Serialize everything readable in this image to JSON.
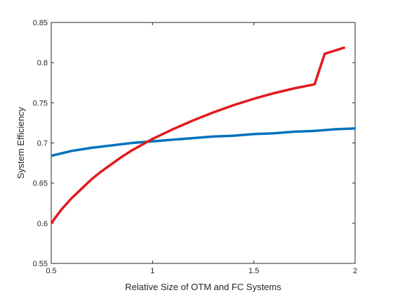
{
  "chart_data": {
    "type": "line",
    "xlabel": "Relative Size of OTM and FC Systems",
    "ylabel": "System Efficiency",
    "xlim": [
      0.5,
      2
    ],
    "ylim": [
      0.55,
      0.85
    ],
    "xticks": [
      0.5,
      1,
      1.5,
      2
    ],
    "xtick_labels": [
      "0.5",
      "1",
      "1.5",
      "2"
    ],
    "yticks": [
      0.55,
      0.6,
      0.65,
      0.7,
      0.75,
      0.8,
      0.85
    ],
    "ytick_labels": [
      "0.55",
      "0.6",
      "0.65",
      "0.7",
      "0.75",
      "0.8",
      "0.85"
    ],
    "grid": false,
    "series": [
      {
        "color": "#0072BD",
        "x": [
          0.5,
          0.6,
          0.7,
          0.8,
          0.9,
          1.0,
          1.1,
          1.2,
          1.3,
          1.4,
          1.5,
          1.6,
          1.7,
          1.8,
          1.9,
          2.0
        ],
        "y": [
          0.684,
          0.69,
          0.694,
          0.697,
          0.7,
          0.702,
          0.704,
          0.706,
          0.708,
          0.709,
          0.711,
          0.712,
          0.714,
          0.715,
          0.717,
          0.718
        ]
      },
      {
        "color": "#E31A1C",
        "x": [
          0.5,
          0.55,
          0.6,
          0.65,
          0.7,
          0.75,
          0.8,
          0.85,
          0.9,
          0.95,
          1.0,
          1.1,
          1.2,
          1.3,
          1.4,
          1.5,
          1.6,
          1.7,
          1.8,
          1.85,
          1.9,
          1.95
        ],
        "y": [
          0.6,
          0.617,
          0.631,
          0.643,
          0.655,
          0.665,
          0.674,
          0.683,
          0.691,
          0.698,
          0.705,
          0.717,
          0.728,
          0.738,
          0.747,
          0.755,
          0.762,
          0.768,
          0.773,
          0.811,
          0.815,
          0.819
        ]
      }
    ]
  }
}
